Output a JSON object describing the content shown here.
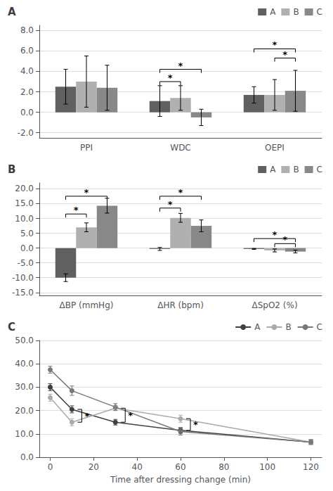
{
  "chart_data": [
    {
      "type": "bar",
      "title": "A",
      "categories": [
        "PPI",
        "WDC",
        "OEPI"
      ],
      "series": [
        {
          "name": "A",
          "color": "#606060",
          "values": [
            2.5,
            1.1,
            1.7
          ],
          "errors": [
            1.7,
            1.5,
            0.8
          ]
        },
        {
          "name": "B",
          "color": "#b0b0b0",
          "values": [
            3.0,
            1.4,
            1.7
          ],
          "errors": [
            2.5,
            1.2,
            1.5
          ]
        },
        {
          "name": "C",
          "color": "#888888",
          "values": [
            2.4,
            -0.5,
            2.1
          ],
          "errors": [
            2.2,
            0.8,
            2.0
          ]
        }
      ],
      "ylim": [
        -2.5,
        8.5
      ],
      "yticks": [
        {
          "value": -2.0,
          "label": "-2.0"
        },
        {
          "value": 0.0,
          "label": "0.0"
        },
        {
          "value": 2.0,
          "label": "2.0"
        },
        {
          "value": 4.0,
          "label": "4.0"
        },
        {
          "value": 6.0,
          "label": "6.0"
        },
        {
          "value": 8.0,
          "label": "8.0"
        }
      ],
      "grid": true,
      "legend": "upper right",
      "annotations": [
        {
          "text": "*",
          "category": "WDC",
          "between": [
            "A",
            "B"
          ],
          "y": 3.0
        },
        {
          "text": "*",
          "category": "WDC",
          "between": [
            "A",
            "C"
          ],
          "y": 4.2
        },
        {
          "text": "*",
          "category": "OEPI",
          "between": [
            "B",
            "C"
          ],
          "y": 5.3
        },
        {
          "text": "*",
          "category": "OEPI",
          "between": [
            "A",
            "C"
          ],
          "y": 6.2
        }
      ]
    },
    {
      "type": "bar",
      "title": "B",
      "categories": [
        "ΔBP (mmHg)",
        "ΔHR (bpm)",
        "ΔSpO2 (%)"
      ],
      "series": [
        {
          "name": "A",
          "color": "#606060",
          "values": [
            -10.0,
            -0.3,
            -0.3
          ],
          "errors": [
            1.3,
            0.5,
            0.15
          ]
        },
        {
          "name": "B",
          "color": "#b0b0b0",
          "values": [
            7.0,
            10.2,
            -0.8
          ],
          "errors": [
            1.5,
            1.5,
            0.5
          ]
        },
        {
          "name": "C",
          "color": "#888888",
          "values": [
            14.3,
            7.5,
            -1.2
          ],
          "errors": [
            2.5,
            2.0,
            0.45
          ]
        }
      ],
      "ylim": [
        -16.0,
        22.0
      ],
      "yticks": [
        {
          "value": -15.0,
          "label": "-15.0"
        },
        {
          "value": -10.0,
          "label": "-10.0"
        },
        {
          "value": -5.0,
          "label": "-5.0"
        },
        {
          "value": 0.0,
          "label": "0.0"
        },
        {
          "value": 5.0,
          "label": "5.0"
        },
        {
          "value": 10.0,
          "label": "10.0"
        },
        {
          "value": 15.0,
          "label": "15.0"
        },
        {
          "value": 20.0,
          "label": "20.0"
        }
      ],
      "grid": true,
      "legend": "upper right",
      "annotations": [
        {
          "text": "*",
          "category": "ΔBP (mmHg)",
          "between": [
            "A",
            "B"
          ],
          "y": 11.5
        },
        {
          "text": "*",
          "category": "ΔBP (mmHg)",
          "between": [
            "A",
            "C"
          ],
          "y": 17.5
        },
        {
          "text": "*",
          "category": "ΔHR (bpm)",
          "between": [
            "A",
            "B"
          ],
          "y": 13.5
        },
        {
          "text": "*",
          "category": "ΔHR (bpm)",
          "between": [
            "A",
            "C"
          ],
          "y": 17.5
        },
        {
          "text": "*",
          "category": "ΔSpO2 (%)",
          "between": [
            "B",
            "C"
          ],
          "y": 1.5
        },
        {
          "text": "*",
          "category": "ΔSpO2 (%)",
          "between": [
            "A",
            "C"
          ],
          "y": 3.2
        }
      ]
    },
    {
      "type": "line",
      "title": "C",
      "x": [
        0,
        10,
        30,
        60,
        120
      ],
      "series": [
        {
          "name": "A",
          "color": "#404040",
          "values": [
            30.0,
            20.5,
            15.0,
            11.5,
            6.5
          ],
          "errors": [
            1.5,
            1.5,
            1.2,
            1.2,
            1.0
          ]
        },
        {
          "name": "B",
          "color": "#aaaaaa",
          "values": [
            25.5,
            15.0,
            21.0,
            16.5,
            6.5
          ],
          "errors": [
            1.5,
            1.5,
            1.0,
            1.5,
            1.0
          ]
        },
        {
          "name": "C",
          "color": "#787878",
          "values": [
            37.5,
            28.5,
            21.5,
            11.0,
            6.5
          ],
          "errors": [
            1.5,
            2.0,
            1.5,
            1.5,
            1.0
          ]
        }
      ],
      "marker": "circle",
      "xlabel": "Time after dressing change (min)",
      "xlim": [
        -5,
        125
      ],
      "xticks": [
        0,
        20,
        40,
        60,
        80,
        100,
        120
      ],
      "ylim": [
        0.0,
        50.0
      ],
      "yticks": [
        {
          "value": 0.0,
          "label": "0.0"
        },
        {
          "value": 10.0,
          "label": "10.0"
        },
        {
          "value": 20.0,
          "label": "20.0"
        },
        {
          "value": 30.0,
          "label": "30.0"
        },
        {
          "value": 40.0,
          "label": "40.0"
        },
        {
          "value": 50.0,
          "label": "50.0"
        }
      ],
      "grid": true,
      "legend": "upper right",
      "annotations": [
        {
          "text": "*",
          "x": 10,
          "between": [
            "A",
            "B"
          ]
        },
        {
          "text": "*",
          "x": 30,
          "between": [
            "A",
            "B"
          ]
        },
        {
          "text": "*",
          "x": 60,
          "between": [
            "A",
            "B"
          ]
        }
      ]
    }
  ]
}
